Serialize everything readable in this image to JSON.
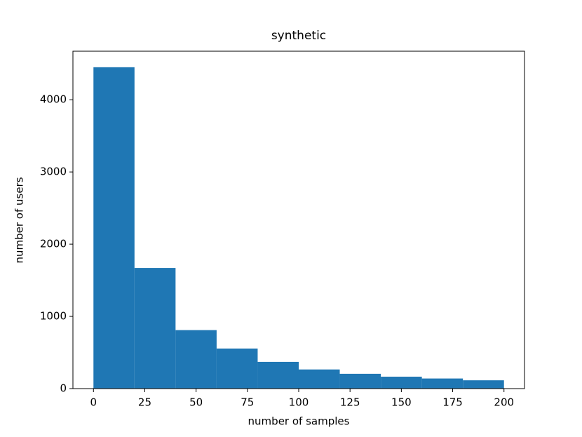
{
  "chart_data": {
    "type": "histogram",
    "title": "synthetic",
    "x_label": "number of samples",
    "y_label": "number of users",
    "bins": [
      0,
      20,
      40,
      60,
      80,
      100,
      120,
      140,
      160,
      180,
      200
    ],
    "values": [
      4450,
      1670,
      810,
      555,
      370,
      265,
      205,
      165,
      140,
      115
    ],
    "color": "#1f77b4",
    "xlim": [
      -10,
      210
    ],
    "ylim": [
      0,
      4672
    ],
    "xticks": [
      0,
      25,
      50,
      75,
      100,
      125,
      150,
      175,
      200
    ],
    "yticks": [
      0,
      1000,
      2000,
      3000,
      4000
    ]
  }
}
